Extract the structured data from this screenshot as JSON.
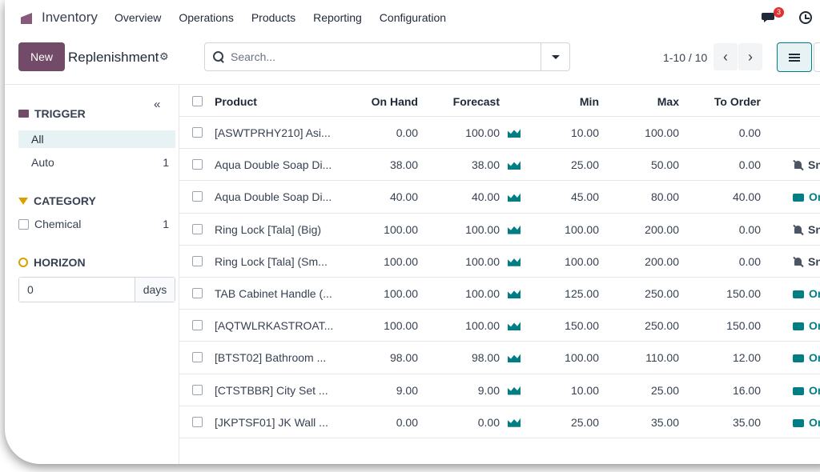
{
  "nav": {
    "app_name": "Inventory",
    "menu": [
      "Overview",
      "Operations",
      "Products",
      "Reporting",
      "Configuration"
    ],
    "chat_badge": "3",
    "icons": {
      "chat": "chat-icon",
      "clock": "clock-icon"
    }
  },
  "control": {
    "new_label": "New",
    "title": "Replenishment",
    "search_placeholder": "Search...",
    "pager": "1-10 / 10",
    "pager_prev": "‹",
    "pager_next": "›"
  },
  "sidebar": {
    "collapse": "«",
    "trigger": {
      "title": "TRIGGER",
      "items": [
        {
          "label": "All",
          "count": ""
        },
        {
          "label": "Auto",
          "count": "1"
        }
      ]
    },
    "category": {
      "title": "CATEGORY",
      "items": [
        {
          "label": "Chemical",
          "count": "1"
        }
      ]
    },
    "horizon": {
      "title": "HORIZON",
      "value": "0",
      "unit": "days"
    }
  },
  "table": {
    "headers": {
      "product": "Product",
      "on_hand": "On Hand",
      "forecast": "Forecast",
      "min": "Min",
      "max": "Max",
      "to_order": "To Order"
    },
    "rows": [
      {
        "product": "[ASWTPRHY210] Asi...",
        "on_hand": "0.00",
        "forecast": "100.00",
        "min": "10.00",
        "max": "100.00",
        "to_order": "0.00",
        "action": "",
        "action_type": "none"
      },
      {
        "product": "Aqua Double Soap Di...",
        "on_hand": "38.00",
        "forecast": "38.00",
        "min": "25.00",
        "max": "50.00",
        "to_order": "0.00",
        "action": "Sn",
        "action_type": "snooze"
      },
      {
        "product": "Aqua Double Soap Di...",
        "on_hand": "40.00",
        "forecast": "40.00",
        "min": "45.00",
        "max": "80.00",
        "to_order": "40.00",
        "action": "Or",
        "action_type": "order"
      },
      {
        "product": "Ring Lock [Tala] (Big)",
        "on_hand": "100.00",
        "forecast": "100.00",
        "min": "100.00",
        "max": "200.00",
        "to_order": "0.00",
        "action": "Sn",
        "action_type": "snooze"
      },
      {
        "product": "Ring Lock [Tala] (Sm...",
        "on_hand": "100.00",
        "forecast": "100.00",
        "min": "100.00",
        "max": "200.00",
        "to_order": "0.00",
        "action": "Sn",
        "action_type": "snooze"
      },
      {
        "product": "TAB Cabinet Handle (...",
        "on_hand": "100.00",
        "forecast": "100.00",
        "min": "125.00",
        "max": "250.00",
        "to_order": "150.00",
        "action": "Or",
        "action_type": "order"
      },
      {
        "product": "[AQTWLRKASTROAT...",
        "on_hand": "100.00",
        "forecast": "100.00",
        "min": "150.00",
        "max": "250.00",
        "to_order": "150.00",
        "action": "Or",
        "action_type": "order"
      },
      {
        "product": "[BTST02] Bathroom ...",
        "on_hand": "98.00",
        "forecast": "98.00",
        "min": "100.00",
        "max": "110.00",
        "to_order": "12.00",
        "action": "Or",
        "action_type": "order"
      },
      {
        "product": "[CTSTBBR] City Set ...",
        "on_hand": "9.00",
        "forecast": "9.00",
        "min": "10.00",
        "max": "25.00",
        "to_order": "16.00",
        "action": "Or",
        "action_type": "order"
      },
      {
        "product": "[JKPTSF01] JK Wall ...",
        "on_hand": "0.00",
        "forecast": "0.00",
        "min": "25.00",
        "max": "35.00",
        "to_order": "35.00",
        "action": "Or",
        "action_type": "order"
      }
    ]
  },
  "colors": {
    "brand": "#714b67",
    "accent": "#017e84",
    "badge": "#e0302f",
    "filter": "#d9a100"
  }
}
